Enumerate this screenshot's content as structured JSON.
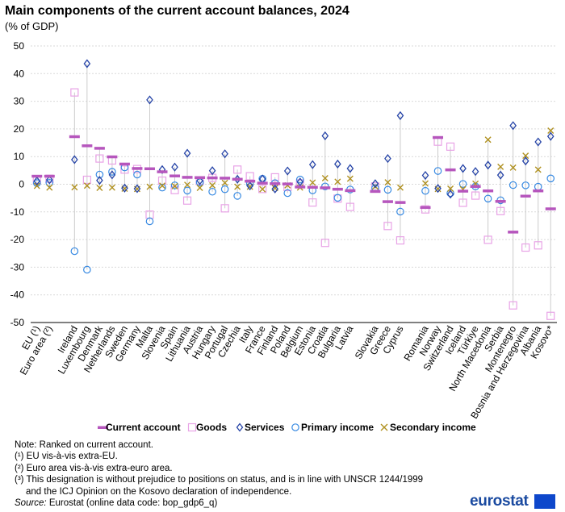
{
  "title": "Main components of the current account balances, 2024",
  "subtitle": "(% of GDP)",
  "chart_data": {
    "type": "scatter",
    "ylim": [
      -50,
      50
    ],
    "yticks": [
      50,
      40,
      30,
      20,
      10,
      0,
      -10,
      -20,
      -30,
      -40,
      -50
    ],
    "gap_after": [
      1,
      24,
      27
    ],
    "categories": [
      "EU (¹)",
      "Euro area (²)",
      "Ireland",
      "Luxembourg",
      "Denmark",
      "Netherlands",
      "Sweden",
      "Germany",
      "Malta",
      "Slovenia",
      "Spain",
      "Lithuania",
      "Austria",
      "Hungary",
      "Portugal",
      "Czechia",
      "Italy",
      "France",
      "Finland",
      "Poland",
      "Belgium",
      "Estonia",
      "Croatia",
      "Bulgaria",
      "Latvia",
      "Slovakia",
      "Greece",
      "Cyprus",
      "Romania",
      "Norway",
      "Switzerland",
      "Iceland",
      "Türkiye",
      "North Macedonia",
      "Serbia",
      "Montenegro",
      "Bosnia and Herzegovina",
      "Albania",
      "Kosovo*"
    ],
    "series": [
      {
        "name": "Current account",
        "values": [
          2.9,
          2.9,
          17.2,
          13.9,
          13.0,
          9.9,
          7.3,
          5.7,
          5.6,
          4.5,
          3.0,
          2.5,
          2.4,
          2.3,
          2.2,
          1.8,
          1.1,
          0.4,
          0.2,
          0.1,
          -1.0,
          -1.1,
          -1.3,
          -1.8,
          -2.3,
          -2.6,
          -6.3,
          -6.6,
          -8.4,
          16.9,
          5.2,
          -2.5,
          -0.8,
          -2.4,
          -6.2,
          -17.3,
          -4.3,
          -2.4,
          -8.9
        ]
      },
      {
        "name": "Goods",
        "values": [
          1.5,
          2.0,
          33.2,
          1.6,
          9.3,
          8.6,
          5.3,
          5.5,
          -11.0,
          1.3,
          -2.1,
          -5.9,
          1.2,
          2.3,
          -8.7,
          5.3,
          2.9,
          -1.7,
          2.5,
          -1.0,
          0.3,
          -6.6,
          -21.2,
          -5.2,
          -8.2,
          -0.8,
          -15.1,
          -20.3,
          -9.1,
          15.4,
          13.6,
          -6.7,
          -4.1,
          -20.1,
          -9.7,
          -43.8,
          -22.9,
          -22.1,
          -47.6
        ]
      },
      {
        "name": "Services",
        "values": [
          1.2,
          1.6,
          8.9,
          43.6,
          1.4,
          3.4,
          -1.4,
          -1.6,
          30.5,
          5.3,
          6.2,
          11.2,
          1.3,
          4.9,
          11.0,
          1.8,
          -0.6,
          1.9,
          -1.7,
          4.8,
          0.8,
          7.1,
          17.5,
          7.3,
          5.7,
          0.2,
          9.3,
          24.8,
          3.2,
          -1.5,
          -3.6,
          5.7,
          4.6,
          6.9,
          3.3,
          21.2,
          8.4,
          15.3,
          17.3
        ]
      },
      {
        "name": "Primary income",
        "values": [
          0.4,
          0.5,
          -24.2,
          -30.9,
          3.5,
          4.5,
          6.1,
          3.5,
          -13.4,
          -1.2,
          -0.4,
          -2.3,
          0.7,
          -2.7,
          -1.8,
          -4.2,
          0.1,
          2.0,
          0.4,
          -3.2,
          1.7,
          -2.2,
          -0.8,
          -4.9,
          -1.9,
          -1.4,
          -2.0,
          -9.9,
          -2.4,
          4.8,
          -3.2,
          0.1,
          -0.8,
          -5.2,
          -5.8,
          -0.3,
          -0.4,
          -0.9,
          2.1
        ]
      },
      {
        "name": "Secondary income",
        "values": [
          -0.6,
          -1.2,
          -1.1,
          -0.5,
          -1.3,
          -1.2,
          -1.6,
          -1.7,
          -0.9,
          -0.5,
          -0.7,
          -0.2,
          -1.3,
          -0.4,
          0.5,
          -0.9,
          -0.9,
          -1.8,
          -1.4,
          -0.4,
          -1.2,
          0.6,
          2.2,
          0.9,
          2.0,
          -0.8,
          0.7,
          -1.2,
          0.3,
          -1.7,
          -1.6,
          -1.8,
          0.2,
          16.1,
          6.3,
          6.0,
          10.3,
          5.3,
          19.4
        ]
      }
    ]
  },
  "legend": {
    "current_account": "Current account",
    "goods": "Goods",
    "services": "Services",
    "primary_income": "Primary income",
    "secondary_income": "Secondary income"
  },
  "colors": {
    "current_account": "#b656bd",
    "goods": "#e8a3e6",
    "services": "#2644a7",
    "primary_income": "#388ae2",
    "secondary_income": "#b09120",
    "range_line": "#cccccc",
    "grid": "#d9d9d9"
  },
  "notes": {
    "note": "Note: Ranked on current account.",
    "fn1": "(¹) EU vis-à-vis extra-EU.",
    "fn2": "(²) Euro area vis-à-vis extra-euro  area.",
    "fn3a": "(³) This designation is without  prejudice to positions on status, and is in line with UNSCR 1244/1999",
    "fn3b": "and the ICJ Opinion on the Kosovo declaration of independence.",
    "source_label": "Source:",
    "source_text": " Eurostat (online data code: bop_gdp6_q)"
  },
  "logo": "eurostat"
}
